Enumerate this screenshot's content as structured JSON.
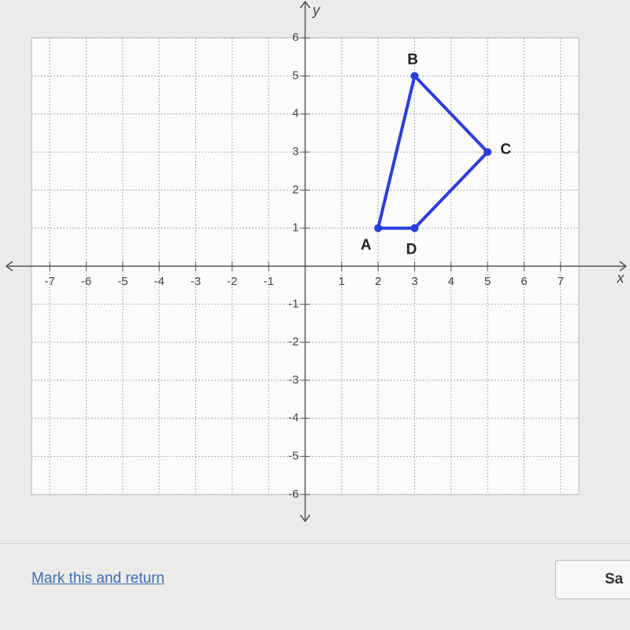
{
  "chart_data": {
    "type": "polygon",
    "x_label": "x",
    "y_label": "y",
    "points": [
      "A",
      "B",
      "C",
      "D"
    ],
    "x": [
      2,
      3,
      5,
      3
    ],
    "y": [
      1,
      5,
      3,
      1
    ],
    "color": "#2a3ee0",
    "xlim": [
      -7.5,
      7.5
    ],
    "ylim": [
      -6.5,
      6.5
    ],
    "xticks": [
      -7,
      -6,
      -5,
      -4,
      -3,
      -2,
      -1,
      1,
      2,
      3,
      4,
      5,
      6,
      7
    ],
    "yticks": [
      -6,
      -5,
      -4,
      -3,
      -2,
      -1,
      1,
      2,
      3,
      4,
      5,
      6
    ],
    "grid": true
  },
  "footer": {
    "link": "Mark this and return",
    "button": "Sa"
  }
}
